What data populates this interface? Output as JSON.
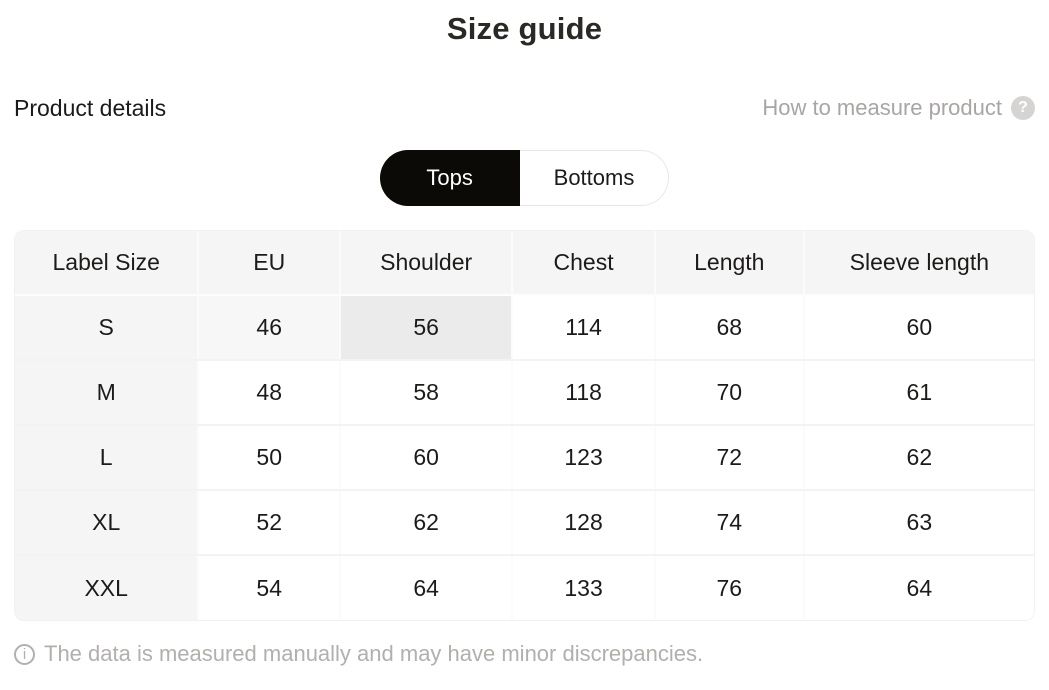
{
  "page": {
    "title": "Size guide",
    "section_title": "Product details",
    "help_label": "How to measure product",
    "help_icon_glyph": "?",
    "footer_icon_glyph": "i",
    "footer_note": "The data is measured manually and may have minor discrepancies."
  },
  "toggle": {
    "options": [
      {
        "label": "Tops",
        "selected": true
      },
      {
        "label": "Bottoms",
        "selected": false
      }
    ]
  },
  "table": {
    "columns": [
      "Label Size",
      "EU",
      "Shoulder",
      "Chest",
      "Length",
      "Sleeve length"
    ],
    "rows": [
      [
        "S",
        "46",
        "56",
        "114",
        "68",
        "60"
      ],
      [
        "M",
        "48",
        "58",
        "118",
        "70",
        "61"
      ],
      [
        "L",
        "50",
        "60",
        "123",
        "72",
        "62"
      ],
      [
        "XL",
        "52",
        "62",
        "128",
        "74",
        "63"
      ],
      [
        "XXL",
        "54",
        "64",
        "133",
        "76",
        "64"
      ]
    ],
    "tinted_cell": {
      "row": 0,
      "col": 1
    },
    "highlight_cell": {
      "row": 0,
      "col": 2
    }
  },
  "colors": {
    "text": "#1d1b19",
    "title_text": "#2b2926",
    "muted_text": "#a8a5a2",
    "footer_text": "#b2afac",
    "toggle_selected_bg": "#0c0a07",
    "toggle_selected_text": "#ffffff",
    "header_bg": "#f5f5f5",
    "label_column_bg": "#f5f5f5",
    "tinted_cell_bg": "#f7f7f7",
    "highlighted_cell_bg": "#ebebeb",
    "help_icon_bg": "#d6d4d3"
  }
}
